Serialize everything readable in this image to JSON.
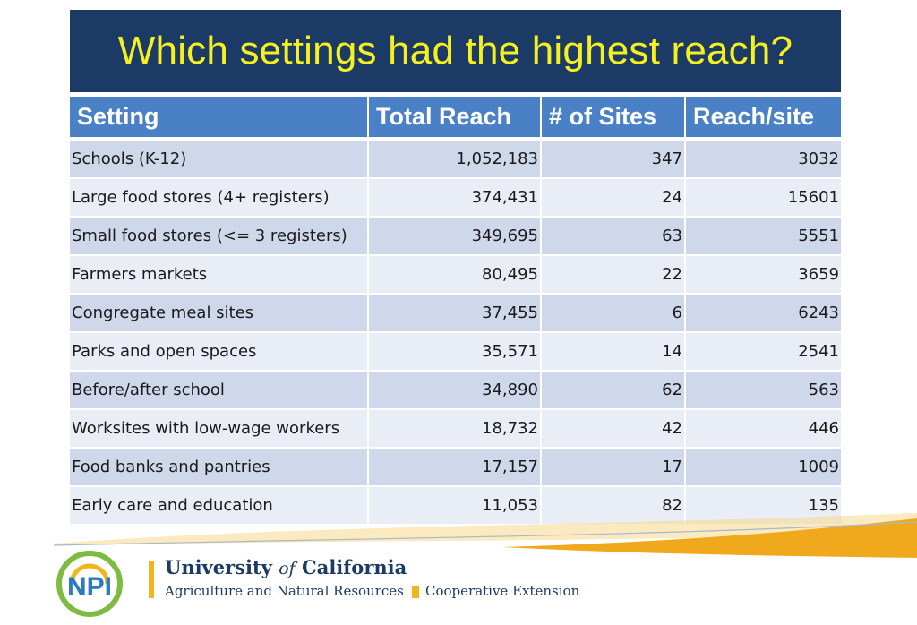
{
  "title": "Which settings had the highest reach?",
  "table": {
    "headers": [
      "Setting",
      "Total Reach",
      "# of Sites",
      "Reach/site"
    ],
    "rows": [
      {
        "setting": "Schools (K-12)",
        "total_reach": "1,052,183",
        "sites": "347",
        "reach_per_site": "3032"
      },
      {
        "setting": "Large food stores (4+ registers)",
        "total_reach": "374,431",
        "sites": "24",
        "reach_per_site": "15601"
      },
      {
        "setting": "Small food stores (<= 3 registers)",
        "total_reach": "349,695",
        "sites": "63",
        "reach_per_site": "5551"
      },
      {
        "setting": "Farmers markets",
        "total_reach": "80,495",
        "sites": "22",
        "reach_per_site": "3659"
      },
      {
        "setting": "Congregate meal sites",
        "total_reach": "37,455",
        "sites": "6",
        "reach_per_site": "6243"
      },
      {
        "setting": "Parks and open spaces",
        "total_reach": "35,571",
        "sites": "14",
        "reach_per_site": "2541"
      },
      {
        "setting": "Before/after school",
        "total_reach": "34,890",
        "sites": "62",
        "reach_per_site": "563"
      },
      {
        "setting": "Worksites with low-wage workers",
        "total_reach": "18,732",
        "sites": "42",
        "reach_per_site": "446"
      },
      {
        "setting": "Food banks and pantries",
        "total_reach": "17,157",
        "sites": "17",
        "reach_per_site": "1009"
      },
      {
        "setting": "Early care and education",
        "total_reach": "11,053",
        "sites": "82",
        "reach_per_site": "135"
      }
    ]
  },
  "footer": {
    "logo_text": "NPI",
    "uc_name_part1": "University",
    "uc_name_of": "of",
    "uc_name_part2": "California",
    "uc_subtitle": "Agriculture and Natural Resources",
    "cooperative": "Cooperative Extension"
  },
  "colors": {
    "title_band": "#1b3a66",
    "title_text": "#f5f01e",
    "header_bg": "#4a80c6",
    "row_dark": "#cfd8ea",
    "row_light": "#e9edf5",
    "accent_gold": "#f2b51b"
  }
}
